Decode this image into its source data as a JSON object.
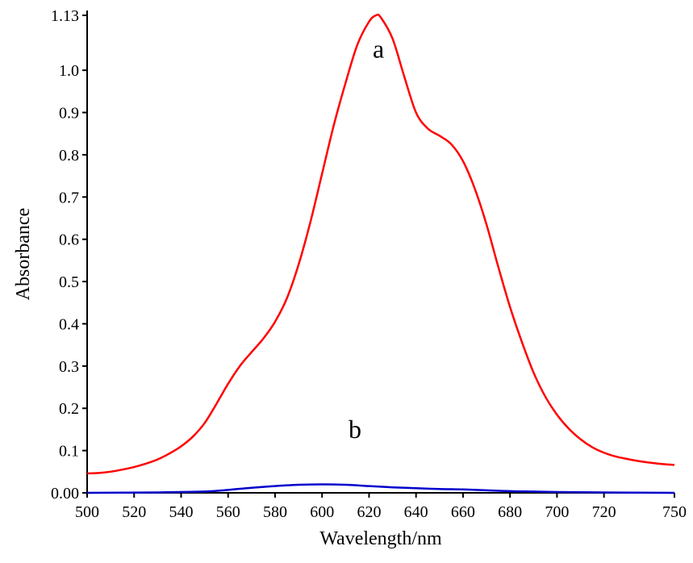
{
  "chart_data": {
    "type": "line",
    "xlabel": "Wavelength/nm",
    "ylabel": "Absorbance",
    "xlim": [
      500,
      750
    ],
    "ylim": [
      0,
      1.13
    ],
    "x_ticks": [
      500,
      520,
      540,
      560,
      580,
      600,
      620,
      640,
      660,
      680,
      700,
      720,
      750
    ],
    "y_ticks": [
      {
        "value": 0.0,
        "label": "0.00"
      },
      {
        "value": 0.1,
        "label": "0.1"
      },
      {
        "value": 0.2,
        "label": "0.2"
      },
      {
        "value": 0.3,
        "label": "0.3"
      },
      {
        "value": 0.4,
        "label": "0.4"
      },
      {
        "value": 0.5,
        "label": "0.5"
      },
      {
        "value": 0.6,
        "label": "0.6"
      },
      {
        "value": 0.7,
        "label": "0.7"
      },
      {
        "value": 0.8,
        "label": "0.8"
      },
      {
        "value": 0.9,
        "label": "0.9"
      },
      {
        "value": 1.0,
        "label": "1.0"
      },
      {
        "value": 1.13,
        "label": "1.13"
      }
    ],
    "grid": false,
    "series": [
      {
        "name": "a",
        "color": "#ff0000",
        "label_position": [
          624,
          1.03
        ],
        "points": [
          [
            500,
            0.046
          ],
          [
            505,
            0.047
          ],
          [
            510,
            0.05
          ],
          [
            515,
            0.055
          ],
          [
            520,
            0.061
          ],
          [
            525,
            0.069
          ],
          [
            530,
            0.079
          ],
          [
            535,
            0.093
          ],
          [
            540,
            0.11
          ],
          [
            545,
            0.133
          ],
          [
            550,
            0.165
          ],
          [
            555,
            0.21
          ],
          [
            560,
            0.258
          ],
          [
            565,
            0.3
          ],
          [
            570,
            0.333
          ],
          [
            575,
            0.365
          ],
          [
            580,
            0.405
          ],
          [
            585,
            0.46
          ],
          [
            590,
            0.54
          ],
          [
            595,
            0.64
          ],
          [
            600,
            0.755
          ],
          [
            605,
            0.87
          ],
          [
            610,
            0.97
          ],
          [
            615,
            1.06
          ],
          [
            620,
            1.115
          ],
          [
            623,
            1.13
          ],
          [
            625,
            1.125
          ],
          [
            630,
            1.075
          ],
          [
            635,
            0.985
          ],
          [
            640,
            0.9
          ],
          [
            645,
            0.862
          ],
          [
            650,
            0.845
          ],
          [
            655,
            0.825
          ],
          [
            660,
            0.785
          ],
          [
            665,
            0.72
          ],
          [
            670,
            0.635
          ],
          [
            675,
            0.535
          ],
          [
            680,
            0.44
          ],
          [
            685,
            0.358
          ],
          [
            690,
            0.285
          ],
          [
            695,
            0.228
          ],
          [
            700,
            0.185
          ],
          [
            705,
            0.152
          ],
          [
            710,
            0.127
          ],
          [
            715,
            0.108
          ],
          [
            720,
            0.095
          ],
          [
            725,
            0.086
          ],
          [
            730,
            0.08
          ],
          [
            735,
            0.075
          ],
          [
            740,
            0.071
          ],
          [
            745,
            0.068
          ],
          [
            750,
            0.066
          ]
        ]
      },
      {
        "name": "b",
        "color": "#0000cc",
        "label_position": [
          614,
          0.13
        ],
        "points": [
          [
            500,
            0.0
          ],
          [
            530,
            0.001
          ],
          [
            550,
            0.003
          ],
          [
            560,
            0.007
          ],
          [
            570,
            0.012
          ],
          [
            580,
            0.016
          ],
          [
            590,
            0.019
          ],
          [
            600,
            0.02
          ],
          [
            610,
            0.019
          ],
          [
            620,
            0.016
          ],
          [
            630,
            0.013
          ],
          [
            640,
            0.011
          ],
          [
            650,
            0.009
          ],
          [
            660,
            0.008
          ],
          [
            670,
            0.006
          ],
          [
            680,
            0.004
          ],
          [
            690,
            0.003
          ],
          [
            700,
            0.002
          ],
          [
            720,
            0.001
          ],
          [
            750,
            0.0
          ]
        ]
      }
    ]
  }
}
